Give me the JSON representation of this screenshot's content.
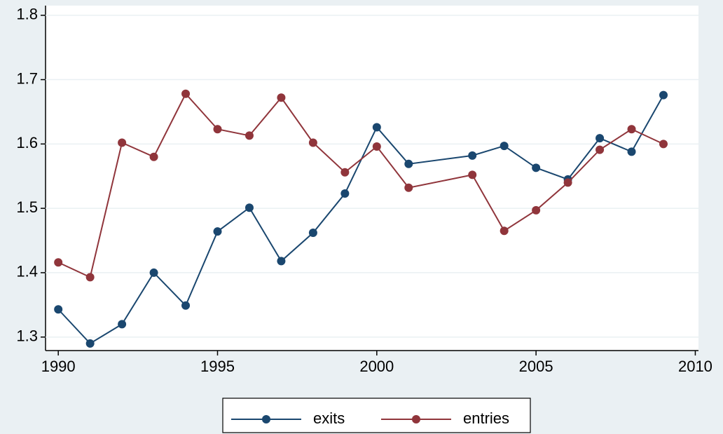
{
  "chart_data": {
    "type": "line",
    "x": [
      1990,
      1991,
      1992,
      1993,
      1994,
      1995,
      1996,
      1997,
      1998,
      1999,
      2000,
      2001,
      2003,
      2004,
      2005,
      2006,
      2007,
      2008,
      2009
    ],
    "series": [
      {
        "name": "exits",
        "color": "#1a476f",
        "values": [
          1.343,
          1.29,
          1.32,
          1.4,
          1.349,
          1.464,
          1.501,
          1.418,
          1.462,
          1.523,
          1.626,
          1.569,
          1.582,
          1.597,
          1.563,
          1.545,
          1.609,
          1.588,
          1.676
        ]
      },
      {
        "name": "entries",
        "color": "#90353b",
        "values": [
          1.416,
          1.393,
          1.602,
          1.58,
          1.678,
          1.623,
          1.613,
          1.672,
          1.602,
          1.556,
          1.596,
          1.532,
          1.552,
          1.465,
          1.497,
          1.54,
          1.591,
          1.623,
          1.6
        ]
      }
    ],
    "xlim": [
      1989.6,
      2010.1
    ],
    "xticks": [
      1990,
      1995,
      2000,
      2005,
      2010
    ],
    "ylim": [
      1.279,
      1.815
    ],
    "yticks": [
      1.3,
      1.4,
      1.5,
      1.6,
      1.7,
      1.8
    ],
    "grid": true
  }
}
